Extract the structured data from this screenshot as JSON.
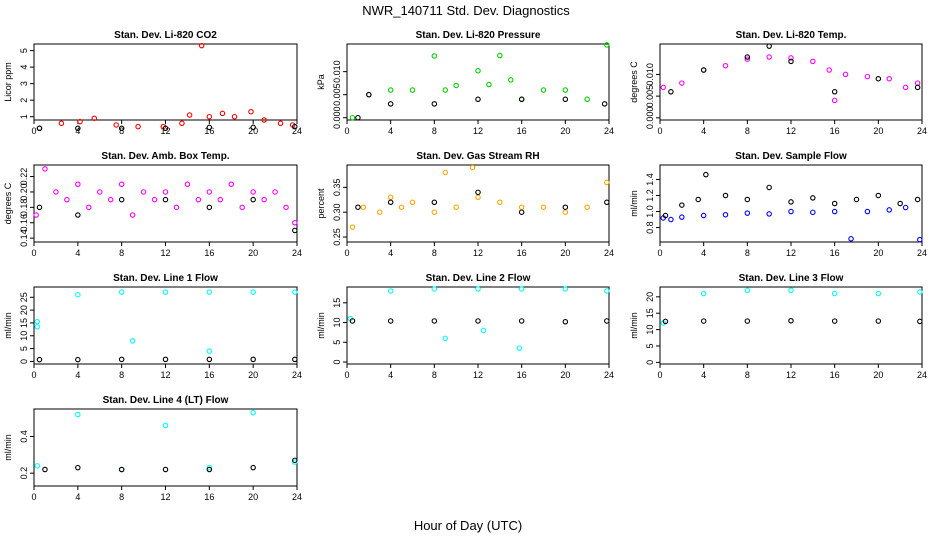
{
  "figure": {
    "title": "NWR_140711  Std. Dev. Diagnostics",
    "xlabel": "Hour of Day (UTC)",
    "x_ticks": [
      "0",
      "4",
      "8",
      "12",
      "16",
      "20",
      "24"
    ]
  },
  "colors": {
    "black": "#000000",
    "red": "#ff0000",
    "green": "#00d000",
    "magenta": "#ff00ff",
    "orange": "#ffa500",
    "blue": "#0000ff",
    "cyan": "#00ffff"
  },
  "chart_data": [
    {
      "type": "scatter",
      "title": "Stan. Dev. Li-820 CO2",
      "ylabel": "Licor ppm",
      "xlim": [
        0,
        24
      ],
      "ylim": [
        0.8,
        5.4
      ],
      "y_ticks": [
        "1",
        "2",
        "3",
        "4",
        "5"
      ],
      "series": [
        {
          "color": "red",
          "points": [
            [
              0.5,
              0.3
            ],
            [
              2.5,
              0.6
            ],
            [
              4.2,
              0.7
            ],
            [
              5.5,
              0.9
            ],
            [
              7.5,
              0.5
            ],
            [
              9.5,
              0.4
            ],
            [
              11.8,
              0.4
            ],
            [
              13.5,
              0.6
            ],
            [
              14.2,
              1.1
            ],
            [
              15.3,
              5.3
            ],
            [
              16.0,
              1.0
            ],
            [
              17.2,
              1.2
            ],
            [
              18.3,
              1.0
            ],
            [
              19.8,
              1.3
            ],
            [
              21.0,
              0.8
            ],
            [
              22.5,
              0.6
            ],
            [
              23.6,
              0.5
            ]
          ]
        },
        {
          "color": "black",
          "points": [
            [
              0.5,
              0.3
            ],
            [
              4,
              0.3
            ],
            [
              8,
              0.3
            ],
            [
              12,
              0.3
            ],
            [
              16,
              0.35
            ],
            [
              20,
              0.35
            ],
            [
              23.8,
              0.4
            ]
          ]
        }
      ]
    },
    {
      "type": "scatter",
      "title": "Stan. Dev. Li-820 Pressure",
      "ylabel": "kPa",
      "xlim": [
        0,
        24
      ],
      "ylim": [
        -0.0005,
        0.016
      ],
      "y_ticks": [
        "0.000",
        "0.005",
        "0.010"
      ],
      "series": [
        {
          "color": "green",
          "points": [
            [
              0.5,
              0.0
            ],
            [
              2,
              0.005
            ],
            [
              4,
              0.006
            ],
            [
              6,
              0.006
            ],
            [
              8,
              0.0134
            ],
            [
              9,
              0.006
            ],
            [
              10,
              0.007
            ],
            [
              12,
              0.0102
            ],
            [
              13,
              0.0072
            ],
            [
              14,
              0.0135
            ],
            [
              15,
              0.0082
            ],
            [
              16,
              0.004
            ],
            [
              18,
              0.006
            ],
            [
              20,
              0.006
            ],
            [
              22,
              0.004
            ],
            [
              23.8,
              0.0158
            ]
          ]
        },
        {
          "color": "black",
          "points": [
            [
              1,
              0.0
            ],
            [
              2,
              0.005
            ],
            [
              4,
              0.003
            ],
            [
              8,
              0.003
            ],
            [
              12,
              0.004
            ],
            [
              16,
              0.004
            ],
            [
              20,
              0.004
            ],
            [
              23.6,
              0.003
            ]
          ]
        }
      ]
    },
    {
      "type": "scatter",
      "title": "Stan. Dev. Li-820 Temp.",
      "ylabel": "degrees C",
      "xlim": [
        0,
        24
      ],
      "ylim": [
        -0.0005,
        0.017
      ],
      "y_ticks": [
        "0.000",
        "0.005",
        "0.010"
      ],
      "series": [
        {
          "color": "magenta",
          "points": [
            [
              0.3,
              0.007
            ],
            [
              2,
              0.008
            ],
            [
              4,
              0.011
            ],
            [
              6,
              0.012
            ],
            [
              8,
              0.0135
            ],
            [
              10,
              0.014
            ],
            [
              12,
              0.0138
            ],
            [
              14,
              0.013
            ],
            [
              15.5,
              0.011
            ],
            [
              16.0,
              0.004
            ],
            [
              17,
              0.01
            ],
            [
              19,
              0.0095
            ],
            [
              21,
              0.009
            ],
            [
              22.5,
              0.007
            ],
            [
              23.6,
              0.008
            ]
          ]
        },
        {
          "color": "black",
          "points": [
            [
              1,
              0.006
            ],
            [
              4,
              0.011
            ],
            [
              8,
              0.014
            ],
            [
              10,
              0.0165
            ],
            [
              12,
              0.013
            ],
            [
              16,
              0.006
            ],
            [
              20,
              0.009
            ],
            [
              23.6,
              0.007
            ]
          ]
        }
      ]
    },
    {
      "type": "scatter",
      "title": "Stan. Dev. Amb. Box Temp.",
      "ylabel": "degrees C",
      "xlim": [
        0,
        24
      ],
      "ylim": [
        0.135,
        0.235
      ],
      "y_ticks": [
        "0.14",
        "0.16",
        "0.18",
        "0.20",
        "0.22"
      ],
      "series": [
        {
          "color": "magenta",
          "points": [
            [
              0.2,
              0.17
            ],
            [
              1,
              0.23
            ],
            [
              2,
              0.2
            ],
            [
              3,
              0.19
            ],
            [
              4,
              0.21
            ],
            [
              5,
              0.18
            ],
            [
              6,
              0.2
            ],
            [
              7,
              0.19
            ],
            [
              8,
              0.21
            ],
            [
              9,
              0.17
            ],
            [
              10,
              0.2
            ],
            [
              11,
              0.19
            ],
            [
              12,
              0.2
            ],
            [
              13,
              0.18
            ],
            [
              14,
              0.21
            ],
            [
              15,
              0.19
            ],
            [
              16,
              0.2
            ],
            [
              17,
              0.19
            ],
            [
              18,
              0.21
            ],
            [
              19,
              0.18
            ],
            [
              20,
              0.2
            ],
            [
              21,
              0.19
            ],
            [
              22,
              0.2
            ],
            [
              23,
              0.18
            ],
            [
              23.8,
              0.16
            ]
          ]
        },
        {
          "color": "black",
          "points": [
            [
              0.5,
              0.18
            ],
            [
              4,
              0.17
            ],
            [
              8,
              0.19
            ],
            [
              12,
              0.19
            ],
            [
              16,
              0.18
            ],
            [
              20,
              0.19
            ],
            [
              23.8,
              0.15
            ]
          ]
        }
      ]
    },
    {
      "type": "scatter",
      "title": "Stan. Dev. Gas Stream RH",
      "ylabel": "percent",
      "xlim": [
        0,
        24
      ],
      "ylim": [
        0.24,
        0.395
      ],
      "y_ticks": [
        "0.25",
        "0.30",
        "0.35"
      ],
      "series": [
        {
          "color": "orange",
          "points": [
            [
              0.5,
              0.27
            ],
            [
              1.5,
              0.31
            ],
            [
              3,
              0.3
            ],
            [
              4,
              0.33
            ],
            [
              5,
              0.31
            ],
            [
              6,
              0.32
            ],
            [
              8,
              0.3
            ],
            [
              9,
              0.38
            ],
            [
              10,
              0.31
            ],
            [
              11.5,
              0.39
            ],
            [
              12,
              0.33
            ],
            [
              14,
              0.32
            ],
            [
              16,
              0.31
            ],
            [
              18,
              0.31
            ],
            [
              20,
              0.3
            ],
            [
              22,
              0.31
            ],
            [
              23.8,
              0.36
            ]
          ]
        },
        {
          "color": "black",
          "points": [
            [
              1,
              0.31
            ],
            [
              4,
              0.32
            ],
            [
              8,
              0.32
            ],
            [
              12,
              0.34
            ],
            [
              16,
              0.3
            ],
            [
              20,
              0.31
            ],
            [
              23.8,
              0.32
            ]
          ]
        }
      ]
    },
    {
      "type": "scatter",
      "title": "Stan. Dev. Sample Flow",
      "ylabel": "ml/min",
      "xlim": [
        0,
        24
      ],
      "ylim": [
        0.62,
        1.58
      ],
      "y_ticks": [
        "0.8",
        "1.0",
        "1.2",
        "1.4"
      ],
      "series": [
        {
          "color": "blue",
          "points": [
            [
              0.3,
              0.92
            ],
            [
              1,
              0.9
            ],
            [
              2,
              0.93
            ],
            [
              4,
              0.95
            ],
            [
              6,
              0.96
            ],
            [
              8,
              0.98
            ],
            [
              10,
              0.97
            ],
            [
              12,
              1.0
            ],
            [
              14,
              0.99
            ],
            [
              16,
              1.0
            ],
            [
              17.5,
              0.66
            ],
            [
              19,
              1.0
            ],
            [
              21,
              1.02
            ],
            [
              22.5,
              1.05
            ],
            [
              23.8,
              0.65
            ]
          ]
        },
        {
          "color": "black",
          "points": [
            [
              0.5,
              0.95
            ],
            [
              2,
              1.08
            ],
            [
              3.5,
              1.15
            ],
            [
              4.2,
              1.46
            ],
            [
              6,
              1.2
            ],
            [
              8,
              1.15
            ],
            [
              10,
              1.3
            ],
            [
              12,
              1.12
            ],
            [
              14,
              1.17
            ],
            [
              16,
              1.1
            ],
            [
              18,
              1.15
            ],
            [
              20,
              1.2
            ],
            [
              22,
              1.1
            ],
            [
              23.6,
              1.15
            ]
          ]
        }
      ]
    },
    {
      "type": "scatter",
      "title": "Stan. Dev. Line 1 Flow",
      "ylabel": "ml/min",
      "xlim": [
        0,
        24
      ],
      "ylim": [
        -1,
        29
      ],
      "y_ticks": [
        "0",
        "5",
        "10",
        "15",
        "20",
        "25"
      ],
      "series": [
        {
          "color": "cyan",
          "points": [
            [
              0.3,
              15.5
            ],
            [
              0.3,
              13.5
            ],
            [
              4,
              26
            ],
            [
              8,
              27
            ],
            [
              9,
              8
            ],
            [
              12,
              27
            ],
            [
              16,
              4
            ],
            [
              16,
              27
            ],
            [
              20,
              27
            ],
            [
              23.8,
              27
            ]
          ]
        },
        {
          "color": "black",
          "points": [
            [
              0.5,
              0.7
            ],
            [
              4,
              0.7
            ],
            [
              8,
              0.8
            ],
            [
              12,
              0.8
            ],
            [
              16,
              0.8
            ],
            [
              20,
              0.8
            ],
            [
              23.8,
              0.8
            ]
          ]
        }
      ]
    },
    {
      "type": "scatter",
      "title": "Stan. Dev. Line 2 Flow",
      "ylabel": "ml/min",
      "xlim": [
        0,
        24
      ],
      "ylim": [
        -0.5,
        19
      ],
      "y_ticks": [
        "0",
        "5",
        "10",
        "15"
      ],
      "series": [
        {
          "color": "cyan",
          "points": [
            [
              0.3,
              11
            ],
            [
              4,
              18
            ],
            [
              8,
              18.5
            ],
            [
              9,
              6
            ],
            [
              12,
              18.5
            ],
            [
              12.5,
              8
            ],
            [
              16,
              18.5
            ],
            [
              15.8,
              3.5
            ],
            [
              20,
              18.5
            ],
            [
              23.8,
              18
            ]
          ]
        },
        {
          "color": "black",
          "points": [
            [
              0.5,
              10.4
            ],
            [
              4,
              10.4
            ],
            [
              8,
              10.4
            ],
            [
              12,
              10.4
            ],
            [
              16,
              10.4
            ],
            [
              20,
              10.2
            ],
            [
              23.8,
              10.4
            ]
          ]
        }
      ]
    },
    {
      "type": "scatter",
      "title": "Stan. Dev. Line 3 Flow",
      "ylabel": "ml/min",
      "xlim": [
        0,
        24
      ],
      "ylim": [
        -0.5,
        23
      ],
      "y_ticks": [
        "0",
        "5",
        "10",
        "15",
        "20"
      ],
      "series": [
        {
          "color": "cyan",
          "points": [
            [
              0.3,
              12
            ],
            [
              4,
              21
            ],
            [
              8,
              22
            ],
            [
              12,
              22
            ],
            [
              16,
              21
            ],
            [
              20,
              21
            ],
            [
              23.8,
              21.5
            ]
          ]
        },
        {
          "color": "black",
          "points": [
            [
              0.5,
              12.5
            ],
            [
              4,
              12.6
            ],
            [
              8,
              12.6
            ],
            [
              12,
              12.7
            ],
            [
              16,
              12.6
            ],
            [
              20,
              12.6
            ],
            [
              23.8,
              12.5
            ]
          ]
        }
      ]
    },
    {
      "type": "scatter",
      "title": "Stan. Dev. Line 4 (LT) Flow",
      "ylabel": "ml/min",
      "xlim": [
        0,
        24
      ],
      "ylim": [
        0.13,
        0.55
      ],
      "y_ticks": [
        "0.2",
        "0.4"
      ],
      "series": [
        {
          "color": "cyan",
          "points": [
            [
              0.3,
              0.24
            ],
            [
              4,
              0.52
            ],
            [
              8,
              0.22
            ],
            [
              12,
              0.46
            ],
            [
              16,
              0.23
            ],
            [
              20,
              0.53
            ],
            [
              23.8,
              0.26
            ]
          ]
        },
        {
          "color": "black",
          "points": [
            [
              1,
              0.22
            ],
            [
              4,
              0.23
            ],
            [
              8,
              0.22
            ],
            [
              12,
              0.22
            ],
            [
              16,
              0.22
            ],
            [
              20,
              0.23
            ],
            [
              23.8,
              0.27
            ]
          ]
        }
      ]
    }
  ]
}
